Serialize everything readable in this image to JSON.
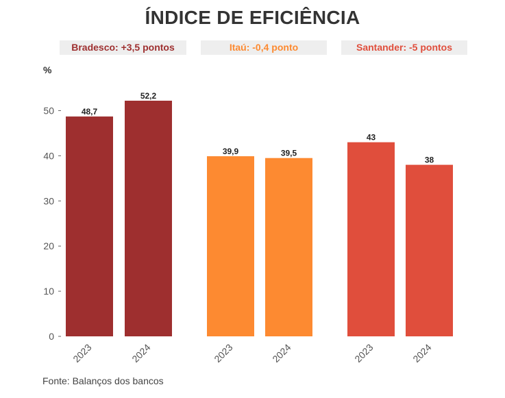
{
  "chart_data": {
    "type": "bar",
    "title": "ÍNDICE DE EFICIÊNCIA",
    "ylabel": "%",
    "xlabel": "",
    "ylim": [
      0,
      55
    ],
    "yticks": [
      0,
      10,
      20,
      30,
      40,
      50
    ],
    "grid": false,
    "groups": [
      {
        "name": "Bradesco",
        "summary": "Bradesco: +3,5 pontos",
        "color": "#9e2f2f",
        "categories": [
          "2023",
          "2024"
        ],
        "values": [
          48.7,
          52.2
        ],
        "labels": [
          "48,7",
          "52,2"
        ]
      },
      {
        "name": "Itaú",
        "summary": "Itaú: -0,4 ponto",
        "color": "#fd8a31",
        "categories": [
          "2023",
          "2024"
        ],
        "values": [
          39.9,
          39.5
        ],
        "labels": [
          "39,9",
          "39,5"
        ]
      },
      {
        "name": "Santander",
        "summary": "Santander: -5 pontos",
        "color": "#e04e3c",
        "categories": [
          "2023",
          "2024"
        ],
        "values": [
          43,
          38
        ],
        "labels": [
          "43",
          "38"
        ]
      }
    ]
  },
  "source": "Fonte: Balanços dos bancos"
}
